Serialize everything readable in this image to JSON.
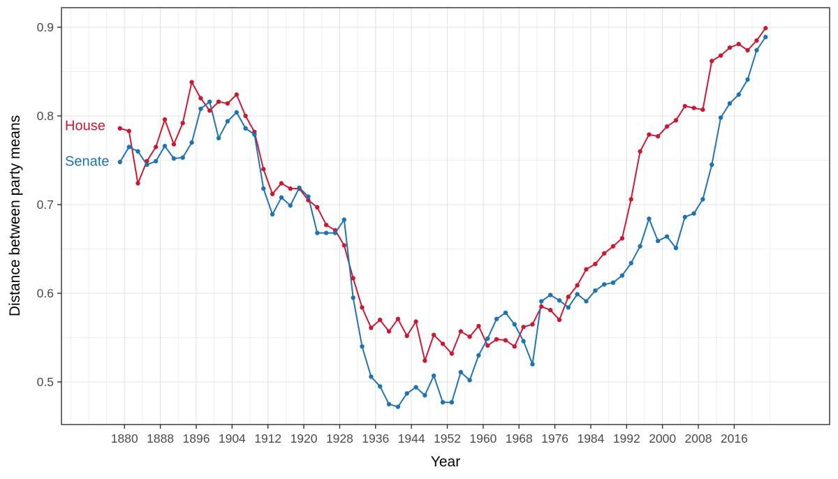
{
  "figure": {
    "background": "#ffffff",
    "panel_border_color": "#2f2f2f",
    "grid_major_color": "#e1e1e1",
    "grid_minor_color": "#ececec",
    "tick_color": "#333333",
    "tick_label_color": "#4a4a4a"
  },
  "chart_data": {
    "type": "line",
    "title": "",
    "xlabel": "Year",
    "ylabel": "Distance between party means",
    "grid": "on",
    "legend_position": "inside-left",
    "xlim": [
      1866,
      2037
    ],
    "ylim": [
      0.452,
      0.922
    ],
    "x_ticks": [
      1880,
      1888,
      1896,
      1904,
      1912,
      1920,
      1928,
      1936,
      1944,
      1952,
      1960,
      1968,
      1976,
      1984,
      1992,
      2000,
      2008,
      2016
    ],
    "x_tick_labels": [
      "1880",
      "1888",
      "1896",
      "1904",
      "1912",
      "1920",
      "1928",
      "1936",
      "1944",
      "1952",
      "1960",
      "1968",
      "1976",
      "1984",
      "1992",
      "2000",
      "2008",
      "2016"
    ],
    "y_ticks": [
      0.5,
      0.6,
      0.7,
      0.8,
      0.9
    ],
    "y_tick_labels": [
      "0.5",
      "0.6",
      "0.7",
      "0.8",
      "0.9"
    ],
    "y_minor_ticks": [
      0.55,
      0.65,
      0.75,
      0.85
    ],
    "x_start": 1879,
    "x_step": 2,
    "series": [
      {
        "name": "House",
        "color": "#c81b33",
        "values": [
          0.786,
          0.783,
          0.724,
          0.749,
          0.765,
          0.796,
          0.768,
          0.792,
          0.838,
          0.82,
          0.806,
          0.816,
          0.814,
          0.824,
          0.8,
          0.782,
          0.74,
          0.712,
          0.724,
          0.718,
          0.718,
          0.705,
          0.697,
          0.677,
          0.671,
          0.654,
          0.617,
          0.584,
          0.561,
          0.57,
          0.557,
          0.571,
          0.552,
          0.568,
          0.524,
          0.553,
          0.543,
          0.532,
          0.557,
          0.551,
          0.563,
          0.541,
          0.548,
          0.547,
          0.54,
          0.562,
          0.565,
          0.585,
          0.581,
          0.57,
          0.596,
          0.609,
          0.627,
          0.633,
          0.645,
          0.653,
          0.662,
          0.706,
          0.76,
          0.779,
          0.777,
          0.788,
          0.795,
          0.811,
          0.809,
          0.807,
          0.862,
          0.868,
          0.877,
          0.881,
          0.874,
          0.885,
          0.899
        ]
      },
      {
        "name": "Senate",
        "color": "#1f73b2",
        "values": [
          0.748,
          0.765,
          0.76,
          0.745,
          0.749,
          0.766,
          0.752,
          0.753,
          0.77,
          0.808,
          0.816,
          0.775,
          0.794,
          0.804,
          0.786,
          0.779,
          0.718,
          0.689,
          0.708,
          0.699,
          0.719,
          0.709,
          0.668,
          0.668,
          0.668,
          0.683,
          0.595,
          0.54,
          0.506,
          0.495,
          0.475,
          0.472,
          0.487,
          0.494,
          0.485,
          0.507,
          0.477,
          0.477,
          0.511,
          0.502,
          0.53,
          0.549,
          0.571,
          0.578,
          0.565,
          0.546,
          0.52,
          0.591,
          0.598,
          0.592,
          0.584,
          0.599,
          0.591,
          0.603,
          0.61,
          0.612,
          0.62,
          0.634,
          0.653,
          0.684,
          0.659,
          0.664,
          0.651,
          0.686,
          0.69,
          0.706,
          0.745,
          0.798,
          0.814,
          0.824,
          0.841,
          0.874,
          0.889
        ]
      }
    ]
  }
}
